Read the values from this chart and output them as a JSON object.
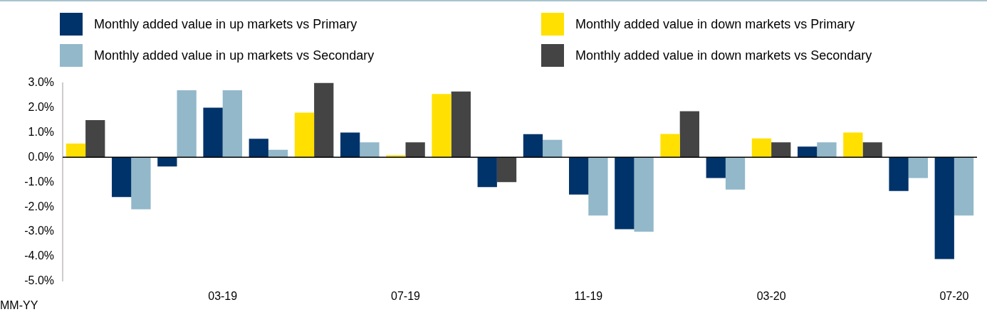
{
  "chart_data": {
    "type": "bar",
    "xlabel": "MM-YY",
    "categories": [
      null,
      null,
      null,
      "03-19",
      null,
      null,
      null,
      "07-19",
      null,
      null,
      null,
      "11-19",
      null,
      null,
      null,
      "03-20",
      null,
      null,
      null,
      "07-20"
    ],
    "series": [
      {
        "name": "Monthly added value in up markets vs Primary",
        "color": "#00336a",
        "values": [
          null,
          -1.6,
          -0.37,
          2.0,
          0.75,
          null,
          1.0,
          null,
          null,
          -1.2,
          0.93,
          -1.5,
          -2.9,
          null,
          -0.84,
          null,
          0.43,
          null,
          -1.36,
          -4.1
        ]
      },
      {
        "name": "Monthly added value in up markets vs Secondary",
        "color": "#92b8ca",
        "values": [
          null,
          -2.1,
          2.7,
          2.7,
          0.3,
          null,
          0.6,
          null,
          null,
          null,
          0.7,
          -2.35,
          -3.0,
          null,
          -1.3,
          null,
          0.6,
          null,
          -0.84,
          -2.35
        ]
      },
      {
        "name": "Monthly added value in down markets vs Primary",
        "color": "#ffe000",
        "values": [
          0.55,
          null,
          null,
          null,
          null,
          1.8,
          null,
          0.08,
          2.55,
          null,
          null,
          null,
          null,
          0.94,
          null,
          0.76,
          null,
          1.0,
          null,
          null
        ]
      },
      {
        "name": "Monthly added value in down markets vs Secondary",
        "color": "#444444",
        "values": [
          1.5,
          null,
          null,
          null,
          null,
          3.0,
          null,
          0.6,
          2.65,
          -1.0,
          null,
          null,
          null,
          1.86,
          null,
          0.6,
          null,
          0.6,
          null,
          null
        ]
      }
    ],
    "ylim": [
      -5,
      3
    ],
    "yticks": [
      {
        "value": -5,
        "label": "-5.0%"
      },
      {
        "value": -4,
        "label": "-4.0%"
      },
      {
        "value": -3,
        "label": "-3.0%"
      },
      {
        "value": -2,
        "label": "-2.0%"
      },
      {
        "value": -1,
        "label": "-1.0%"
      },
      {
        "value": 0,
        "label": "0.0%"
      },
      {
        "value": 1,
        "label": "1.0%"
      },
      {
        "value": 2,
        "label": "2.0%"
      },
      {
        "value": 3,
        "label": "3.0%"
      }
    ],
    "ref_lines": [
      {
        "axis": "y",
        "value": 0,
        "color": "#000000"
      }
    ],
    "legend": "top"
  }
}
